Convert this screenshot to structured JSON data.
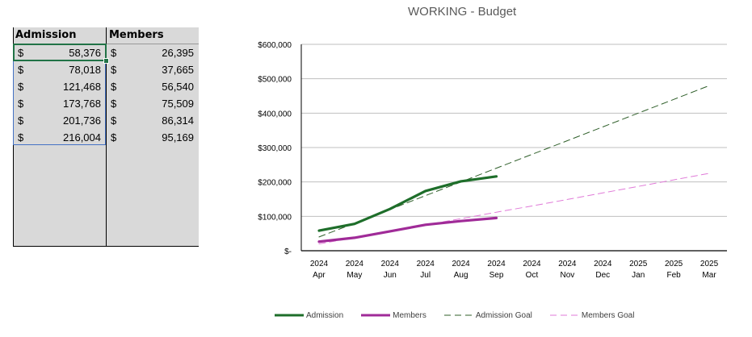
{
  "sheet": {
    "headers": [
      "Admission",
      "Members"
    ],
    "currency_symbol": "$",
    "rows": [
      [
        "58,376",
        "26,395"
      ],
      [
        "78,018",
        "37,665"
      ],
      [
        "121,468",
        "56,540"
      ],
      [
        "173,768",
        "75,509"
      ],
      [
        "201,736",
        "86,314"
      ],
      [
        "216,004",
        "95,169"
      ]
    ]
  },
  "colors": {
    "admission": "#1e6e2a",
    "members": "#a02b98",
    "admission_goal": "#2f5f2a",
    "members_goal": "#e07ad8",
    "gridline": "#bfbfbf",
    "selection": "#4472c4",
    "active_cell": "#217346"
  },
  "chart_data": {
    "type": "line",
    "title": "WORKING - Budget",
    "xlabel": "",
    "ylabel": "",
    "ylim": [
      0,
      600000
    ],
    "yticks": [
      0,
      100000,
      200000,
      300000,
      400000,
      500000,
      600000
    ],
    "ytick_labels": [
      "$-",
      "$100,000",
      "$200,000",
      "$300,000",
      "$400,000",
      "$500,000",
      "$600,000"
    ],
    "grid": true,
    "legend_position": "bottom",
    "categories": [
      [
        "2024",
        "Apr"
      ],
      [
        "2024",
        "May"
      ],
      [
        "2024",
        "Jun"
      ],
      [
        "2024",
        "Jul"
      ],
      [
        "2024",
        "Aug"
      ],
      [
        "2024",
        "Sep"
      ],
      [
        "2024",
        "Oct"
      ],
      [
        "2024",
        "Nov"
      ],
      [
        "2024",
        "Dec"
      ],
      [
        "2025",
        "Jan"
      ],
      [
        "2025",
        "Feb"
      ],
      [
        "2025",
        "Mar"
      ]
    ],
    "series": [
      {
        "name": "Admission",
        "style": "solid",
        "values": [
          58376,
          78018,
          121468,
          173768,
          201736,
          216004
        ]
      },
      {
        "name": "Members",
        "style": "solid",
        "values": [
          26395,
          37665,
          56540,
          75509,
          86314,
          95169
        ]
      },
      {
        "name": "Admission Goal",
        "style": "dashed",
        "values": [
          40000,
          80000,
          120000,
          160000,
          200000,
          240000,
          280000,
          320000,
          360000,
          400000,
          440000,
          480000
        ]
      },
      {
        "name": "Members Goal",
        "style": "dashed",
        "values": [
          20000,
          38000,
          56000,
          75000,
          93000,
          112000,
          130000,
          149000,
          168000,
          187000,
          206000,
          225000
        ]
      }
    ]
  }
}
